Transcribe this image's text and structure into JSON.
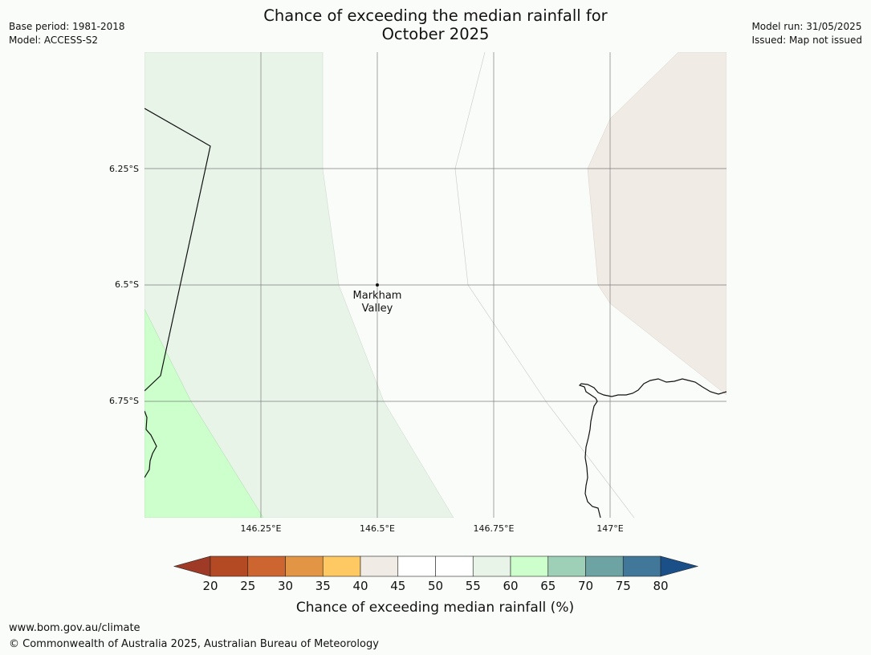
{
  "title": {
    "line1": "Chance of exceeding the median rainfall for",
    "line2": "October 2025"
  },
  "meta_left": {
    "base_period": "Base period: 1981-2018",
    "model": "Model: ACCESS-S2"
  },
  "meta_right": {
    "model_run": "Model run: 31/05/2025",
    "issued": "Issued: Map not issued"
  },
  "map": {
    "lat_labels": [
      "6.25°S",
      "6.5°S",
      "6.75°S"
    ],
    "lon_labels": [
      "146.25°E",
      "146.5°E",
      "146.75°E",
      "147°E"
    ],
    "place": {
      "name_line1": "Markham",
      "name_line2": "Valley"
    },
    "region_colors": {
      "pale_green": "#e9f4e9",
      "light_green": "#ccffcc",
      "beige": "#f1ebe5",
      "white": "#fafcf9"
    }
  },
  "colorbar": {
    "label": "Chance of exceeding median rainfall (%)",
    "ticks": [
      "20",
      "25",
      "30",
      "35",
      "40",
      "45",
      "50",
      "55",
      "60",
      "65",
      "70",
      "75",
      "80"
    ],
    "colors": [
      "#9e3a26",
      "#b34a24",
      "#cd6530",
      "#e19545",
      "#fec962",
      "#f1ebe5",
      "#ffffff",
      "#ffffff",
      "#e9f4e9",
      "#ccffcc",
      "#9dd0b6",
      "#6da3a3",
      "#41789a",
      "#1a4f88"
    ]
  },
  "footer": {
    "url": "www.bom.gov.au/climate",
    "copyright": "© Commonwealth of Australia 2025, Australian Bureau of Meteorology"
  }
}
